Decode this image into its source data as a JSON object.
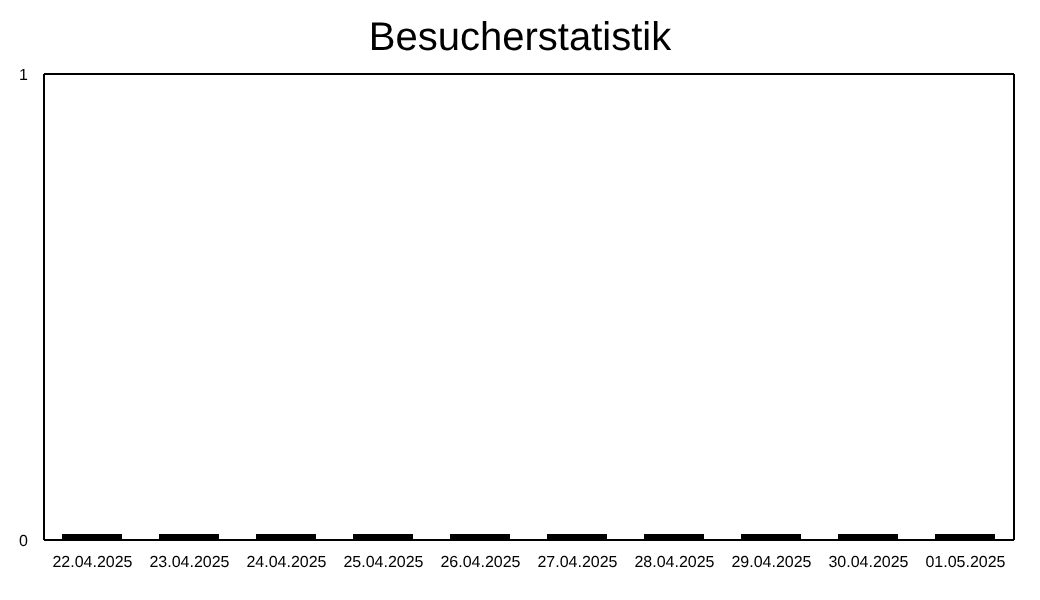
{
  "chart_data": {
    "type": "bar",
    "title": "Besucherstatistik",
    "categories": [
      "22.04.2025",
      "23.04.2025",
      "24.04.2025",
      "25.04.2025",
      "26.04.2025",
      "27.04.2025",
      "28.04.2025",
      "29.04.2025",
      "30.04.2025",
      "01.05.2025"
    ],
    "values": [
      0,
      0,
      0,
      0,
      0,
      0,
      0,
      0,
      0,
      0
    ],
    "color": "#000000",
    "ylim": [
      0,
      1
    ],
    "yticks": [
      0,
      1
    ],
    "grid": false,
    "legend": false
  }
}
